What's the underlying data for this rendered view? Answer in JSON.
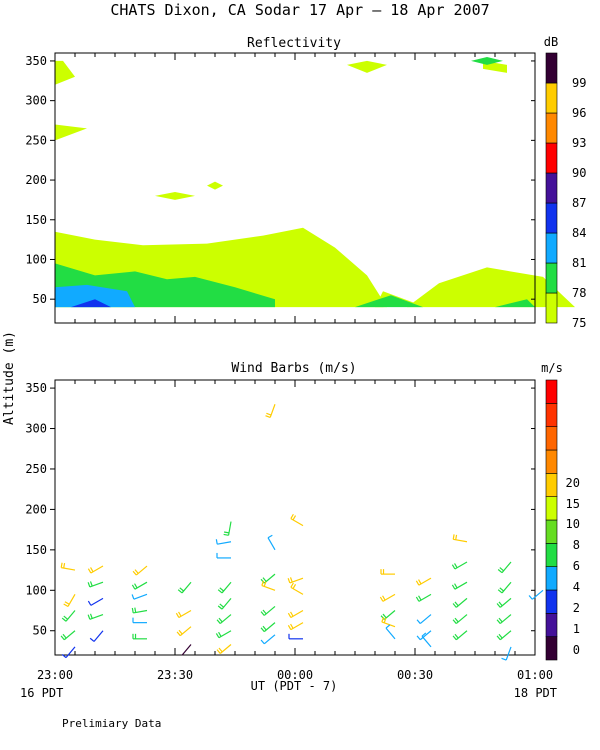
{
  "title": "CHATS Dixon, CA  Sodar  17 Apr – 18 Apr 2007",
  "ylabel": "Altitude (m)",
  "xlabel": "UT  (PDT - 7)",
  "date_left": "16 PDT",
  "date_right": "18 PDT",
  "footer": "Prelimiary Data",
  "colors": {
    "c75": "#ccff00",
    "c78": "#22dd44",
    "c81": "#11aaff",
    "c84": "#1133ee",
    "c87": "#441199",
    "c90": "#ff0000",
    "c93": "#ff8800",
    "c96": "#ffcc00",
    "c99": "#330033"
  },
  "chart_data": [
    {
      "type": "heatmap",
      "title": "Reflectivity",
      "colorbar_unit": "dB",
      "colorbar_ticks": [
        "75",
        "78",
        "81",
        "84",
        "87",
        "90",
        "93",
        "96",
        "99"
      ],
      "colorbar_colors": [
        "#ccff00",
        "#22dd44",
        "#11aaff",
        "#1133ee",
        "#441199",
        "#ff0000",
        "#ff8800",
        "#ffcc00",
        "#330033"
      ],
      "x_ticks": [
        "23:00",
        "23:30",
        "00:00",
        "00:30",
        "01:00"
      ],
      "y_ticks": [
        "50",
        "100",
        "150",
        "200",
        "250",
        "300",
        "350"
      ],
      "xlim_minutes": [
        0,
        120
      ],
      "ylim": [
        20,
        360
      ],
      "regions": [
        {
          "level": 75,
          "poly": [
            [
              0,
              135
            ],
            [
              10,
              125
            ],
            [
              22,
              118
            ],
            [
              38,
              120
            ],
            [
              52,
              130
            ],
            [
              62,
              140
            ],
            [
              70,
              115
            ],
            [
              78,
              80
            ],
            [
              83,
              40
            ],
            [
              0,
              40
            ]
          ]
        },
        {
          "level": 75,
          "poly": [
            [
              88,
              40
            ],
            [
              96,
              70
            ],
            [
              108,
              90
            ],
            [
              122,
              78
            ],
            [
              130,
              40
            ]
          ]
        },
        {
          "level": 75,
          "poly": [
            [
              82,
              60
            ],
            [
              90,
              45
            ],
            [
              82,
              40
            ],
            [
              80,
              40
            ]
          ]
        },
        {
          "level": 75,
          "poly": [
            [
              0,
              115
            ],
            [
              5,
              110
            ],
            [
              0,
              108
            ]
          ]
        },
        {
          "level": 75,
          "poly": [
            [
              0,
              250
            ],
            [
              8,
              265
            ],
            [
              0,
              270
            ]
          ]
        },
        {
          "level": 75,
          "poly": [
            [
              30,
              185
            ],
            [
              35,
              180
            ],
            [
              30,
              175
            ],
            [
              25,
              180
            ]
          ]
        },
        {
          "level": 75,
          "poly": [
            [
              2,
              350
            ],
            [
              5,
              330
            ],
            [
              0,
              320
            ],
            [
              0,
              350
            ]
          ]
        },
        {
          "level": 75,
          "poly": [
            [
              78,
              350
            ],
            [
              83,
              345
            ],
            [
              78,
              335
            ],
            [
              73,
              345
            ]
          ]
        },
        {
          "level": 75,
          "poly": [
            [
              107,
              350
            ],
            [
              113,
              345
            ],
            [
              113,
              335
            ],
            [
              107,
              340
            ]
          ]
        },
        {
          "level": 75,
          "poly": [
            [
              40,
              198
            ],
            [
              42,
              193
            ],
            [
              40,
              188
            ],
            [
              38,
              193
            ]
          ]
        },
        {
          "level": 78,
          "poly": [
            [
              0,
              95
            ],
            [
              10,
              80
            ],
            [
              20,
              85
            ],
            [
              28,
              75
            ],
            [
              35,
              78
            ],
            [
              45,
              65
            ],
            [
              55,
              50
            ],
            [
              55,
              40
            ],
            [
              0,
              40
            ]
          ]
        },
        {
          "level": 78,
          "poly": [
            [
              75,
              40
            ],
            [
              84,
              55
            ],
            [
              92,
              40
            ]
          ]
        },
        {
          "level": 78,
          "poly": [
            [
              110,
              40
            ],
            [
              118,
              50
            ],
            [
              120,
              40
            ]
          ]
        },
        {
          "level": 78,
          "poly": [
            [
              108,
              355
            ],
            [
              112,
              350
            ],
            [
              108,
              345
            ],
            [
              104,
              350
            ]
          ]
        },
        {
          "level": 81,
          "poly": [
            [
              0,
              65
            ],
            [
              8,
              68
            ],
            [
              18,
              60
            ],
            [
              20,
              40
            ],
            [
              0,
              40
            ]
          ]
        },
        {
          "level": 84,
          "poly": [
            [
              4,
              40
            ],
            [
              10,
              50
            ],
            [
              14,
              40
            ]
          ]
        }
      ]
    },
    {
      "type": "scatter",
      "title": "Wind Barbs (m/s)",
      "colorbar_unit": "m/s",
      "colorbar_ticks": [
        "0",
        "1",
        "2",
        "4",
        "6",
        "8",
        "10",
        "15",
        "20"
      ],
      "colorbar_colors": [
        "#330033",
        "#441199",
        "#1133ee",
        "#11aaff",
        "#22dd44",
        "#66dd22",
        "#ccff00",
        "#ffcc00",
        "#ff8800",
        "#ff6600",
        "#ff3300",
        "#ff0000"
      ],
      "x_ticks": [
        "23:00",
        "23:30",
        "00:00",
        "00:30",
        "01:00"
      ],
      "y_ticks": [
        "50",
        "100",
        "150",
        "200",
        "250",
        "300",
        "350"
      ],
      "xlim_minutes": [
        0,
        120
      ],
      "ylim": [
        20,
        360
      ],
      "barbs": [
        {
          "t": 5,
          "z": 125,
          "speed": 10,
          "dir": 280
        },
        {
          "t": 5,
          "z": 95,
          "speed": 10,
          "dir": 210
        },
        {
          "t": 5,
          "z": 75,
          "speed": 7,
          "dir": 220
        },
        {
          "t": 5,
          "z": 50,
          "speed": 6,
          "dir": 230
        },
        {
          "t": 5,
          "z": 30,
          "speed": 3,
          "dir": 220
        },
        {
          "t": 12,
          "z": 130,
          "speed": 10,
          "dir": 240
        },
        {
          "t": 12,
          "z": 110,
          "speed": 6,
          "dir": 250
        },
        {
          "t": 12,
          "z": 90,
          "speed": 3,
          "dir": 240
        },
        {
          "t": 12,
          "z": 70,
          "speed": 6,
          "dir": 250
        },
        {
          "t": 12,
          "z": 50,
          "speed": 3,
          "dir": 220
        },
        {
          "t": 23,
          "z": 130,
          "speed": 10,
          "dir": 230
        },
        {
          "t": 23,
          "z": 110,
          "speed": 6,
          "dir": 240
        },
        {
          "t": 23,
          "z": 95,
          "speed": 4,
          "dir": 250
        },
        {
          "t": 23,
          "z": 75,
          "speed": 6,
          "dir": 260
        },
        {
          "t": 23,
          "z": 60,
          "speed": 4,
          "dir": 270
        },
        {
          "t": 23,
          "z": 40,
          "speed": 6,
          "dir": 270
        },
        {
          "t": 34,
          "z": 110,
          "speed": 6,
          "dir": 220
        },
        {
          "t": 34,
          "z": 75,
          "speed": 10,
          "dir": 240
        },
        {
          "t": 34,
          "z": 55,
          "speed": 10,
          "dir": 230
        },
        {
          "t": 34,
          "z": 33,
          "speed": 0,
          "dir": 220
        },
        {
          "t": 44,
          "z": 185,
          "speed": 6,
          "dir": 190
        },
        {
          "t": 44,
          "z": 160,
          "speed": 4,
          "dir": 260
        },
        {
          "t": 44,
          "z": 140,
          "speed": 4,
          "dir": 270
        },
        {
          "t": 44,
          "z": 110,
          "speed": 6,
          "dir": 220
        },
        {
          "t": 44,
          "z": 90,
          "speed": 6,
          "dir": 220
        },
        {
          "t": 44,
          "z": 70,
          "speed": 6,
          "dir": 230
        },
        {
          "t": 44,
          "z": 50,
          "speed": 6,
          "dir": 240
        },
        {
          "t": 44,
          "z": 33,
          "speed": 10,
          "dir": 230
        },
        {
          "t": 55,
          "z": 330,
          "speed": 10,
          "dir": 200
        },
        {
          "t": 55,
          "z": 150,
          "speed": 4,
          "dir": 330
        },
        {
          "t": 55,
          "z": 120,
          "speed": 6,
          "dir": 230
        },
        {
          "t": 55,
          "z": 100,
          "speed": 10,
          "dir": 290
        },
        {
          "t": 55,
          "z": 80,
          "speed": 6,
          "dir": 230
        },
        {
          "t": 55,
          "z": 60,
          "speed": 6,
          "dir": 230
        },
        {
          "t": 55,
          "z": 45,
          "speed": 4,
          "dir": 230
        },
        {
          "t": 62,
          "z": 180,
          "speed": 10,
          "dir": 300
        },
        {
          "t": 62,
          "z": 115,
          "speed": 10,
          "dir": 250
        },
        {
          "t": 62,
          "z": 95,
          "speed": 10,
          "dir": 300
        },
        {
          "t": 62,
          "z": 75,
          "speed": 10,
          "dir": 240
        },
        {
          "t": 62,
          "z": 60,
          "speed": 10,
          "dir": 240
        },
        {
          "t": 62,
          "z": 40,
          "speed": 2,
          "dir": 270
        },
        {
          "t": 85,
          "z": 120,
          "speed": 10,
          "dir": 270
        },
        {
          "t": 85,
          "z": 95,
          "speed": 10,
          "dir": 240
        },
        {
          "t": 85,
          "z": 75,
          "speed": 6,
          "dir": 230
        },
        {
          "t": 85,
          "z": 55,
          "speed": 10,
          "dir": 290
        },
        {
          "t": 85,
          "z": 40,
          "speed": 4,
          "dir": 320
        },
        {
          "t": 94,
          "z": 115,
          "speed": 10,
          "dir": 240
        },
        {
          "t": 94,
          "z": 95,
          "speed": 6,
          "dir": 240
        },
        {
          "t": 94,
          "z": 70,
          "speed": 4,
          "dir": 230
        },
        {
          "t": 94,
          "z": 50,
          "speed": 4,
          "dir": 230
        },
        {
          "t": 94,
          "z": 30,
          "speed": 4,
          "dir": 320
        },
        {
          "t": 103,
          "z": 160,
          "speed": 10,
          "dir": 280
        },
        {
          "t": 103,
          "z": 135,
          "speed": 6,
          "dir": 240
        },
        {
          "t": 103,
          "z": 110,
          "speed": 6,
          "dir": 240
        },
        {
          "t": 103,
          "z": 90,
          "speed": 6,
          "dir": 230
        },
        {
          "t": 103,
          "z": 70,
          "speed": 6,
          "dir": 230
        },
        {
          "t": 103,
          "z": 50,
          "speed": 6,
          "dir": 230
        },
        {
          "t": 114,
          "z": 135,
          "speed": 6,
          "dir": 220
        },
        {
          "t": 114,
          "z": 110,
          "speed": 6,
          "dir": 220
        },
        {
          "t": 114,
          "z": 90,
          "speed": 6,
          "dir": 230
        },
        {
          "t": 114,
          "z": 70,
          "speed": 6,
          "dir": 230
        },
        {
          "t": 114,
          "z": 50,
          "speed": 6,
          "dir": 230
        },
        {
          "t": 114,
          "z": 30,
          "speed": 4,
          "dir": 200
        },
        {
          "t": 122,
          "z": 100,
          "speed": 4,
          "dir": 230
        }
      ]
    }
  ]
}
